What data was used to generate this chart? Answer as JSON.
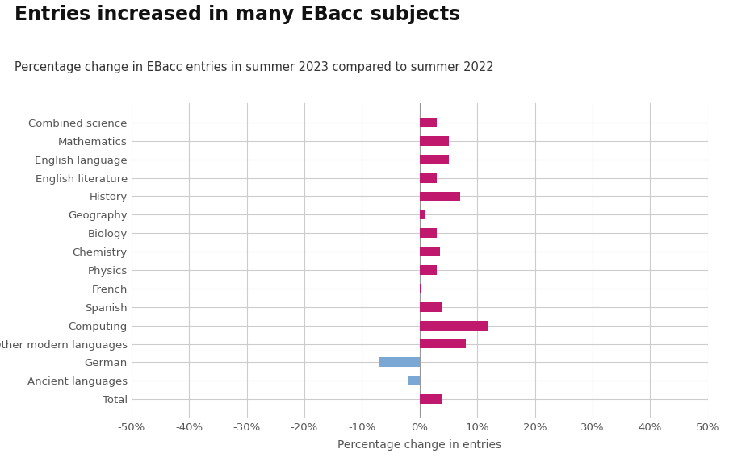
{
  "title": "Entries increased in many EBacc subjects",
  "subtitle": "Percentage change in EBacc entries in summer 2023 compared to summer 2022",
  "xlabel": "Percentage change in entries",
  "categories": [
    "Combined science",
    "Mathematics",
    "English language",
    "English literature",
    "History",
    "Geography",
    "Biology",
    "Chemistry",
    "Physics",
    "French",
    "Spanish",
    "Computing",
    "Other modern languages",
    "German",
    "Ancient languages",
    "Total"
  ],
  "values": [
    3.0,
    5.0,
    5.0,
    3.0,
    7.0,
    1.0,
    3.0,
    3.5,
    3.0,
    0.3,
    4.0,
    12.0,
    8.0,
    -7.0,
    -2.0,
    4.0
  ],
  "colors": [
    "#c0186c",
    "#c0186c",
    "#c0186c",
    "#c0186c",
    "#c0186c",
    "#c0186c",
    "#c0186c",
    "#c0186c",
    "#c0186c",
    "#c0186c",
    "#c0186c",
    "#c0186c",
    "#c0186c",
    "#7ba7d4",
    "#7ba7d4",
    "#c0186c"
  ],
  "xlim": [
    -50,
    50
  ],
  "xticks": [
    -50,
    -40,
    -30,
    -20,
    -10,
    0,
    10,
    20,
    30,
    40,
    50
  ],
  "xtick_labels": [
    "-50%",
    "-40%",
    "-30%",
    "-20%",
    "-10%",
    "0%",
    "10%",
    "20%",
    "30%",
    "40%",
    "50%"
  ],
  "background_color": "#ffffff",
  "grid_color": "#cccccc",
  "title_fontsize": 17,
  "subtitle_fontsize": 10.5,
  "xlabel_fontsize": 10,
  "tick_fontsize": 9.5,
  "bar_height": 0.52
}
